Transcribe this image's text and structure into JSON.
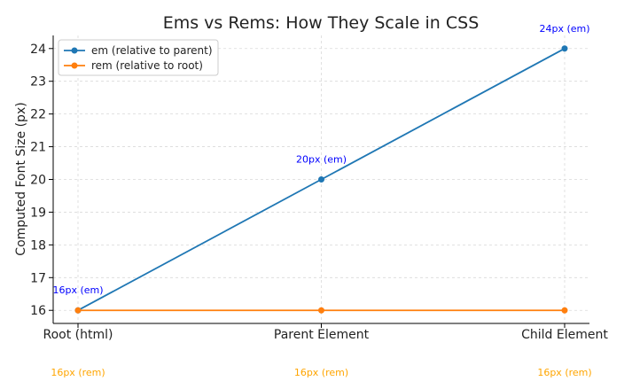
{
  "chart_data": {
    "type": "line",
    "title": "Ems vs Rems: How They Scale in CSS",
    "xlabel": "",
    "ylabel": "Computed Font Size (px)",
    "categories": [
      "Root (html)",
      "Parent Element",
      "Child Element"
    ],
    "ylim": [
      15.6,
      24.4
    ],
    "yticks": [
      16,
      17,
      18,
      19,
      20,
      21,
      22,
      23,
      24
    ],
    "grid": true,
    "legend_position": "top-left",
    "series": [
      {
        "name": "em (relative to parent)",
        "values": [
          16,
          20,
          24
        ],
        "color": "#1f77b4",
        "annotations": [
          "16px (em)",
          "20px (em)",
          "24px (em)"
        ],
        "annotation_color": "#0000ff"
      },
      {
        "name": "rem (relative to root)",
        "values": [
          16,
          16,
          16
        ],
        "color": "#ff7f0e",
        "annotations": [
          "16px (rem)",
          "16px (rem)",
          "16px (rem)"
        ],
        "annotation_color": "#ffa500"
      }
    ]
  }
}
